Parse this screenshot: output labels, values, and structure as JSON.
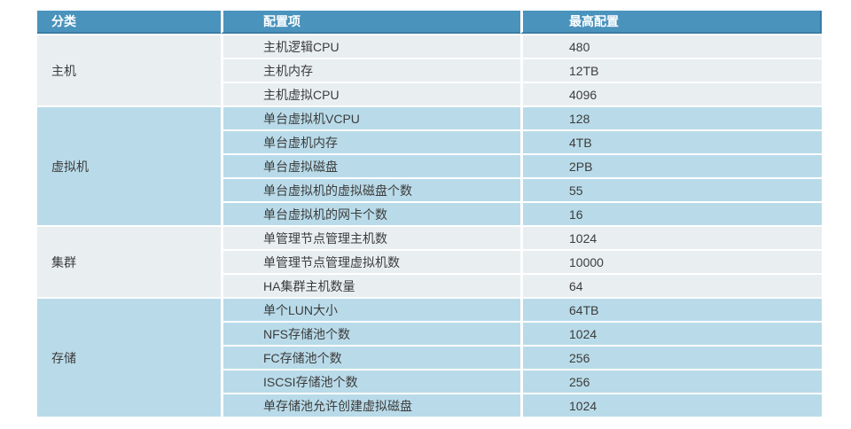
{
  "colors": {
    "header_bg": "#4a93bd",
    "header_border": "#3a7da5",
    "header_text": "#ffffff",
    "band_gray": "#e9eef1",
    "band_blue": "#b9dbe9",
    "row_divider": "#ffffff",
    "body_text": "#3c3c3c"
  },
  "table": {
    "headers": {
      "category": "分类",
      "item": "配置项",
      "max": "最高配置"
    },
    "sections": [
      {
        "category": "主机",
        "rows": [
          {
            "item": "主机逻辑CPU",
            "max": "480"
          },
          {
            "item": "主机内存",
            "max": "12TB"
          },
          {
            "item": "主机虚拟CPU",
            "max": "4096"
          }
        ]
      },
      {
        "category": "虚拟机",
        "rows": [
          {
            "item": "单台虚拟机VCPU",
            "max": "128"
          },
          {
            "item": "单台虚机内存",
            "max": "4TB"
          },
          {
            "item": "单台虚拟磁盘",
            "max": "2PB"
          },
          {
            "item": "单台虚拟机的虚拟磁盘个数",
            "max": "55"
          },
          {
            "item": "单台虚拟机的网卡个数",
            "max": "16"
          }
        ]
      },
      {
        "category": "集群",
        "rows": [
          {
            "item": "单管理节点管理主机数",
            "max": "1024"
          },
          {
            "item": "单管理节点管理虚拟机数",
            "max": "10000"
          },
          {
            "item": "HA集群主机数量",
            "max": "64"
          }
        ]
      },
      {
        "category": "存储",
        "rows": [
          {
            "item": "单个LUN大小",
            "max": "64TB"
          },
          {
            "item": "NFS存储池个数",
            "max": "1024"
          },
          {
            "item": "FC存储池个数",
            "max": "256"
          },
          {
            "item": "ISCSI存储池个数",
            "max": "256"
          },
          {
            "item": "单存储池允许创建虚拟磁盘",
            "max": "1024"
          }
        ]
      }
    ]
  }
}
